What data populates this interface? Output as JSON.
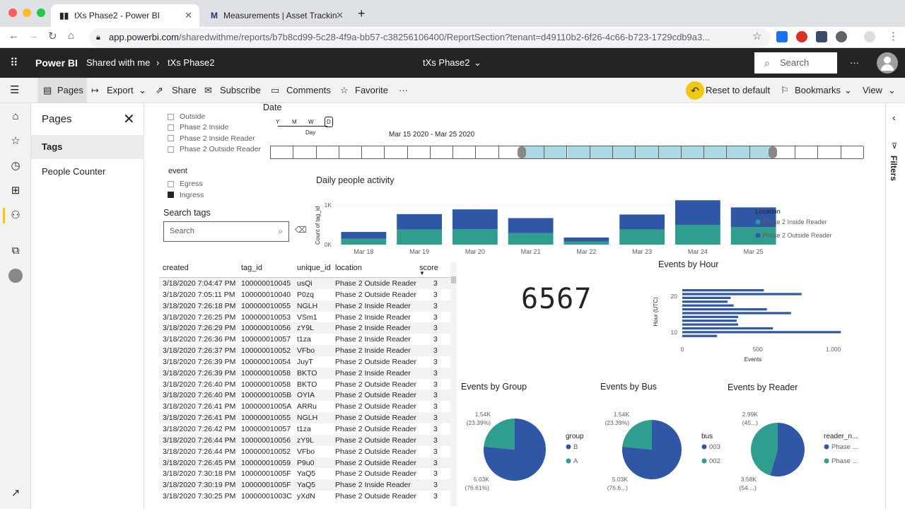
{
  "browser": {
    "tabs": [
      {
        "title": "tXs Phase2 - Power BI",
        "active": true
      },
      {
        "title": "Measurements | Asset Tracking",
        "active": false
      }
    ],
    "url_domain": "app.powerbi.com",
    "url_rest": "/sharedwithme/reports/b7b8cd99-5c28-4f9a-bb57-c38256106400/ReportSection?tenant=d49110b2-6f26-4c66-b723-1729cdb9a3..."
  },
  "header": {
    "app": "Power BI",
    "breadcrumb": [
      "Shared with me",
      "tXs Phase2"
    ],
    "report_title": "tXs Phase2",
    "search_placeholder": "Search"
  },
  "toolbar": {
    "pages": "Pages",
    "export": "Export",
    "share": "Share",
    "subscribe": "Subscribe",
    "comments": "Comments",
    "favorite": "Favorite",
    "more": "···",
    "reset": "Reset to default",
    "bookmarks": "Bookmarks",
    "view": "View"
  },
  "pages_pane": {
    "title": "Pages",
    "items": [
      "Tags",
      "People Counter"
    ]
  },
  "location_filter": [
    "Outside",
    "Phase 2 Inside",
    "Phase 2 Inside Reader",
    "Phase 2 Outside Reader"
  ],
  "date_slicer": {
    "title": "Date",
    "granularity": [
      "Y",
      "M",
      "W",
      "D"
    ],
    "granularity_label": "Day",
    "range": "Mar 15 2020 - Mar 25 2020"
  },
  "event_filter": {
    "title": "event",
    "items": [
      {
        "label": "Egress",
        "checked": false
      },
      {
        "label": "Ingress",
        "checked": true
      }
    ]
  },
  "search_tags": {
    "title": "Search tags",
    "placeholder": "Search"
  },
  "daily_chart": {
    "title": "Daily people activity",
    "ylabel": "Count of tag_id",
    "legend_title": "Location",
    "colors": {
      "inside": "#2f9e8f",
      "outside": "#2f57a6"
    }
  },
  "chart_data": [
    {
      "type": "bar",
      "title": "Daily people activity",
      "ylabel": "Count of tag_id",
      "categories": [
        "Mar 18",
        "Mar 19",
        "Mar 20",
        "Mar 21",
        "Mar 22",
        "Mar 23",
        "Mar 24",
        "Mar 25"
      ],
      "yticks": [
        "0K",
        "1K"
      ],
      "ylim": [
        0,
        1250
      ],
      "series": [
        {
          "name": "Phase 2 Inside Reader",
          "values": [
            150,
            380,
            390,
            290,
            80,
            380,
            500,
            440
          ]
        },
        {
          "name": "Phase 2 Outside Reader",
          "values": [
            170,
            390,
            500,
            380,
            100,
            380,
            620,
            500
          ]
        }
      ],
      "stacked": true,
      "legend": "right"
    },
    {
      "type": "bar",
      "orientation": "horizontal",
      "title": "Events by Hour",
      "xlabel": "Events",
      "ylabel": "Hour (UTC)",
      "xticks": [
        "0",
        "500",
        "1,000"
      ],
      "yticks": [
        "20",
        "10"
      ],
      "xlim": [
        0,
        1100
      ],
      "categories": [
        21,
        20,
        19,
        18,
        17,
        16,
        15,
        14,
        13,
        12,
        11,
        10,
        9
      ],
      "values": [
        540,
        790,
        320,
        300,
        340,
        560,
        720,
        370,
        360,
        370,
        600,
        1050,
        230
      ]
    },
    {
      "type": "pie",
      "title": "Events by Group",
      "legend_title": "group",
      "slices": [
        {
          "name": "B",
          "value": 5030,
          "label": "5.03K",
          "pct": "(76.61%)",
          "color": "#2f57a6"
        },
        {
          "name": "A",
          "value": 1540,
          "label": "1.54K",
          "pct": "(23.39%)",
          "color": "#2f9e8f"
        }
      ]
    },
    {
      "type": "pie",
      "title": "Events by Bus",
      "legend_title": "bus",
      "slices": [
        {
          "name": "003",
          "value": 5030,
          "label": "5.03K",
          "pct": "(76.6...)",
          "color": "#2f57a6"
        },
        {
          "name": "002",
          "value": 1540,
          "label": "1.54K",
          "pct": "(23.39%)",
          "color": "#2f9e8f"
        }
      ]
    },
    {
      "type": "pie",
      "title": "Events by Reader",
      "legend_title": "reader_n...",
      "slices": [
        {
          "name": "Phase ...",
          "value": 3580,
          "label": "3.58K",
          "pct": "(54....)",
          "color": "#2f57a6"
        },
        {
          "name": "Phase ...",
          "value": 2990,
          "label": "2.99K",
          "pct": "(45...)",
          "color": "#2f9e8f"
        }
      ]
    }
  ],
  "kpi": {
    "value": "6567"
  },
  "table": {
    "columns": [
      "created",
      "tag_id",
      "unique_id",
      "location",
      "score"
    ],
    "rows": [
      [
        "3/18/2020 7:04:47 PM",
        "100000010045",
        "usQi",
        "Phase 2 Outside Reader",
        "3"
      ],
      [
        "3/18/2020 7:05:11 PM",
        "100000010040",
        "P0zq",
        "Phase 2 Outside Reader",
        "3"
      ],
      [
        "3/18/2020 7:26:18 PM",
        "100000010055",
        "NGLH",
        "Phase 2 Inside Reader",
        "3"
      ],
      [
        "3/18/2020 7:26:25 PM",
        "100000010053",
        "VSm1",
        "Phase 2 Inside Reader",
        "3"
      ],
      [
        "3/18/2020 7:26:29 PM",
        "100000010056",
        "zY9L",
        "Phase 2 Inside Reader",
        "3"
      ],
      [
        "3/18/2020 7:26:36 PM",
        "100000010057",
        "t1za",
        "Phase 2 Inside Reader",
        "3"
      ],
      [
        "3/18/2020 7:26:37 PM",
        "100000010052",
        "VFbo",
        "Phase 2 Inside Reader",
        "3"
      ],
      [
        "3/18/2020 7:26:39 PM",
        "100000010054",
        "JuyT",
        "Phase 2 Outside Reader",
        "3"
      ],
      [
        "3/18/2020 7:26:39 PM",
        "100000010058",
        "BKTO",
        "Phase 2 Inside Reader",
        "3"
      ],
      [
        "3/18/2020 7:26:40 PM",
        "100000010058",
        "BKTO",
        "Phase 2 Outside Reader",
        "3"
      ],
      [
        "3/18/2020 7:26:40 PM",
        "10000001005B",
        "OYIA",
        "Phase 2 Outside Reader",
        "3"
      ],
      [
        "3/18/2020 7:26:41 PM",
        "10000001005A",
        "ARRu",
        "Phase 2 Outside Reader",
        "3"
      ],
      [
        "3/18/2020 7:26:41 PM",
        "100000010055",
        "NGLH",
        "Phase 2 Outside Reader",
        "3"
      ],
      [
        "3/18/2020 7:26:42 PM",
        "100000010057",
        "t1za",
        "Phase 2 Outside Reader",
        "3"
      ],
      [
        "3/18/2020 7:26:44 PM",
        "100000010056",
        "zY9L",
        "Phase 2 Outside Reader",
        "3"
      ],
      [
        "3/18/2020 7:26:44 PM",
        "100000010052",
        "VFbo",
        "Phase 2 Outside Reader",
        "3"
      ],
      [
        "3/18/2020 7:26:45 PM",
        "100000010059",
        "P9u0",
        "Phase 2 Outside Reader",
        "3"
      ],
      [
        "3/18/2020 7:30:18 PM",
        "10000001005F",
        "YaQ5",
        "Phase 2 Outside Reader",
        "3"
      ],
      [
        "3/18/2020 7:30:19 PM",
        "10000001005F",
        "YaQ5",
        "Phase 2 Inside Reader",
        "3"
      ],
      [
        "3/18/2020 7:30:25 PM",
        "10000001003C",
        "yXdN",
        "Phase 2 Outside Reader",
        "3"
      ]
    ]
  },
  "filters_label": "Filters"
}
